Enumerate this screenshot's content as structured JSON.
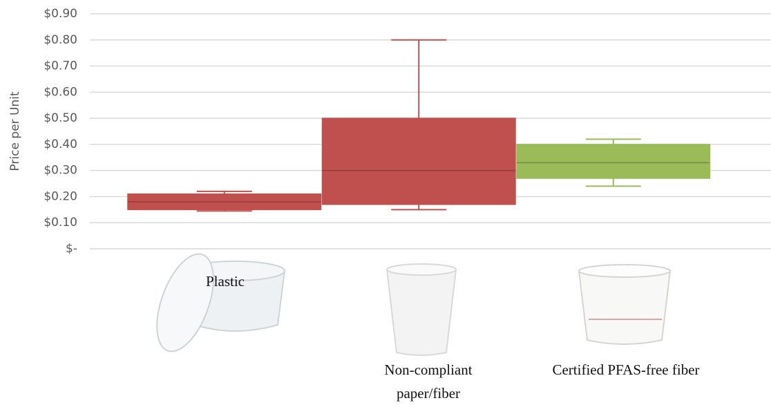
{
  "chart_data": {
    "type": "box",
    "y_label": "Price per Unit",
    "categories": [
      "Plastic",
      "Non-compliant paper/fiber",
      "Certified PFAS-free fiber"
    ],
    "min": [
      0.145,
      0.15,
      0.24
    ],
    "q1": [
      0.15,
      0.17,
      0.27
    ],
    "median": [
      0.18,
      0.3,
      0.33
    ],
    "q3": [
      0.21,
      0.5,
      0.4
    ],
    "max": [
      0.22,
      0.8,
      0.42
    ],
    "colors": [
      "#c0504d",
      "#c0504d",
      "#9bbb59"
    ],
    "ylim": [
      0,
      0.9
    ],
    "yticks": [
      {
        "value": 0,
        "label": "$-"
      },
      {
        "value": 0.1,
        "label": "$0.10"
      },
      {
        "value": 0.2,
        "label": "$0.20"
      },
      {
        "value": 0.3,
        "label": "$0.30"
      },
      {
        "value": 0.4,
        "label": "$0.40"
      },
      {
        "value": 0.5,
        "label": "$0.50"
      },
      {
        "value": 0.6,
        "label": "$0.60"
      },
      {
        "value": 0.7,
        "label": "$0.70"
      },
      {
        "value": 0.8,
        "label": "$0.80"
      },
      {
        "value": 0.9,
        "label": "$0.90"
      }
    ],
    "grid": true
  }
}
